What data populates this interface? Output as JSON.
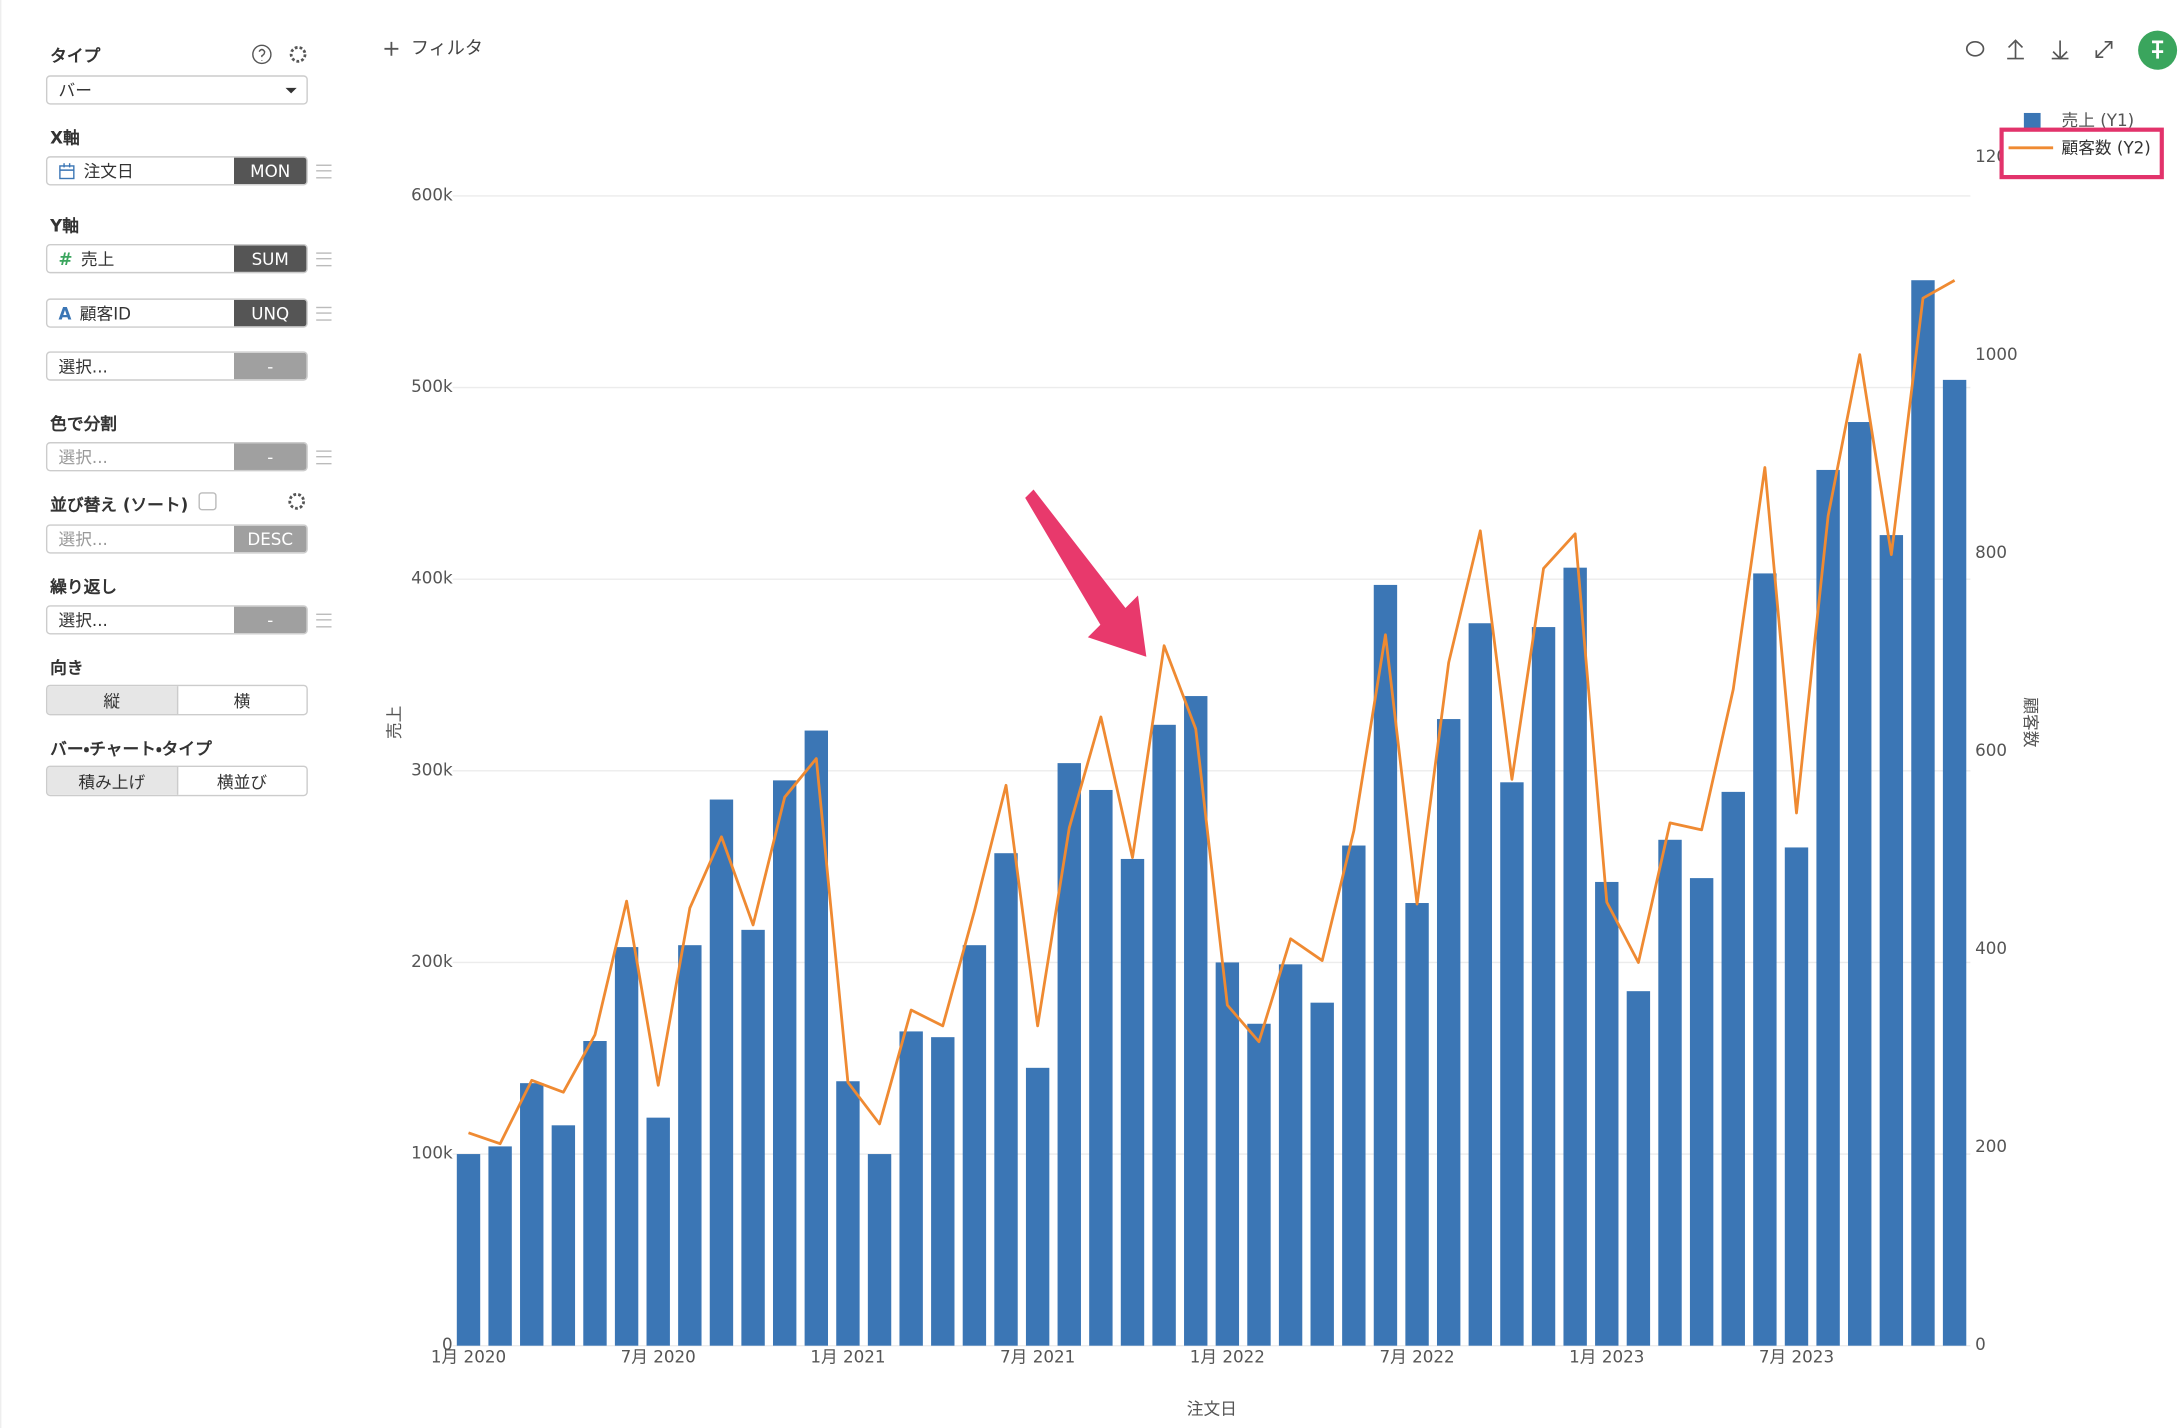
{
  "toolbar": {
    "filter": "フィルタ"
  },
  "sidebar": {
    "type": {
      "label": "タイプ",
      "value": "バー"
    },
    "x_axis": {
      "label": "X軸",
      "field": "注文日",
      "agg": "MON"
    },
    "y_axis": {
      "label": "Y軸",
      "fields": [
        {
          "icon": "#",
          "field": "売上",
          "agg": "SUM"
        },
        {
          "icon": "A",
          "field": "顧客ID",
          "agg": "UNQ"
        },
        {
          "field": "選択...",
          "agg": "-"
        }
      ]
    },
    "color_split": {
      "label": "色で分割",
      "field": "選択...",
      "agg": "-"
    },
    "sort": {
      "label": "並び替え (ソート)",
      "field": "選択...",
      "agg": "DESC"
    },
    "repeat": {
      "label": "繰り返し",
      "field": "選択...",
      "agg": "-"
    },
    "orientation": {
      "label": "向き",
      "options": [
        "縦",
        "横"
      ]
    },
    "bar_chart_type": {
      "label": "バー・チャート・タイプ",
      "options": [
        "積み上げ",
        "横並び"
      ]
    }
  },
  "chart_data": {
    "type": "bar",
    "x_label": "注文日",
    "y_label": "売上",
    "y2_label": "顧客数",
    "categories": [
      "1月 2020",
      null,
      null,
      null,
      null,
      null,
      "7月 2020",
      null,
      null,
      null,
      null,
      null,
      "1月 2021",
      null,
      null,
      null,
      null,
      null,
      "7月 2021",
      null,
      null,
      null,
      null,
      null,
      "1月 2022",
      null,
      null,
      null,
      null,
      null,
      "7月 2022",
      null,
      null,
      null,
      null,
      null,
      "1月 2023",
      null,
      null,
      null,
      null,
      null,
      "7月 2023",
      null,
      null,
      null,
      null,
      null
    ],
    "series": [
      {
        "name": "売上 (Y1)",
        "type": "bar",
        "color": "#3b76b5",
        "values": [
          100000,
          104000,
          137000,
          115000,
          159000,
          208000,
          119000,
          209000,
          285000,
          217000,
          295000,
          321000,
          138000,
          100000,
          164000,
          161000,
          209000,
          257000,
          145000,
          304000,
          290000,
          254000,
          324000,
          339000,
          200000,
          168000,
          199000,
          179000,
          261000,
          397000,
          231000,
          327000,
          377000,
          294000,
          375000,
          406000,
          242000,
          185000,
          264000,
          244000,
          289000,
          403000,
          260000,
          457000,
          482000,
          423000,
          556000,
          504000
        ]
      },
      {
        "name": "顧客数 (Y2)",
        "type": "line",
        "axis": "y2",
        "color": "#ef8a32",
        "values": [
          215,
          204,
          268,
          256,
          314,
          449,
          263,
          442,
          514,
          425,
          554,
          593,
          266,
          224,
          339,
          323,
          439,
          566,
          323,
          523,
          635,
          493,
          707,
          623,
          344,
          307,
          411,
          389,
          520,
          718,
          446,
          690,
          823,
          572,
          785,
          820,
          448,
          387,
          528,
          521,
          663,
          887,
          538,
          838,
          1001,
          799,
          1058,
          1076
        ]
      }
    ],
    "ylim": [
      0,
      620000
    ],
    "yticks": [
      0,
      {
        "value": 100000,
        "label": "100k"
      },
      {
        "value": 200000,
        "label": "200k"
      },
      {
        "value": 300000,
        "label": "300k"
      },
      {
        "value": 400000,
        "label": "400k"
      },
      {
        "value": 500000,
        "label": "500k"
      },
      {
        "value": 600000,
        "label": "600k"
      }
    ],
    "y2lim": [
      0,
      1200
    ],
    "y2ticks": [
      0,
      200,
      400,
      600,
      800,
      1000,
      1200
    ],
    "grid": true,
    "legend": "top-right"
  }
}
